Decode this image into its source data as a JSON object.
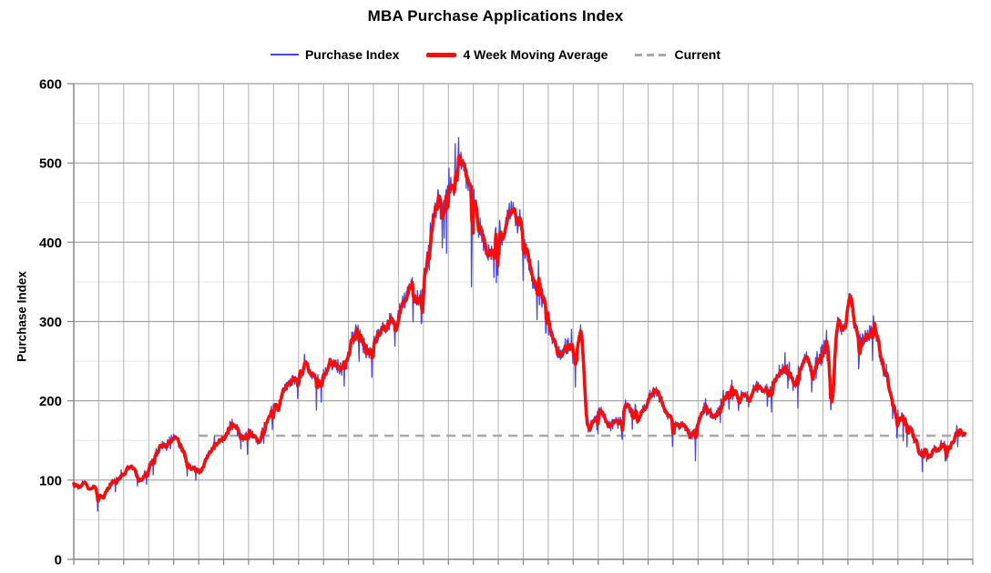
{
  "chart_data": {
    "type": "line",
    "title": "MBA Purchase Applications Index",
    "ylabel": "Purchase Index",
    "x_range": [
      1990,
      2026
    ],
    "ylim": [
      0,
      600
    ],
    "y_major_ticks": [
      0,
      100,
      200,
      300,
      400,
      500,
      600
    ],
    "y_minor_ticks": [
      50,
      150,
      250,
      350,
      450,
      550
    ],
    "x_gridline_interval_years": 1,
    "x_axis_labels_visible": false,
    "grid": true,
    "legend_position": "top-center",
    "legend": [
      {
        "label": "Purchase Index",
        "color": "#4444e4",
        "style": "solid-thin"
      },
      {
        "label": "4 Week Moving Average",
        "color": "#f90d0b",
        "style": "solid-thick"
      },
      {
        "label": "Current",
        "color": "#a9a9a9",
        "style": "dashed"
      }
    ],
    "current_value": 156,
    "current_line_year_span": [
      1995.0,
      2026.0
    ],
    "series_start_year": 1990.0,
    "series_end_year": 2025.7,
    "series": [
      {
        "name": "Purchase Index",
        "description": "weekly index = trend keypoints plus weekly volatility"
      },
      {
        "name": "4 Week Moving Average",
        "description": "4-week moving average of the weekly Purchase Index"
      }
    ],
    "trend_keypoints": [
      [
        1990.0,
        95
      ],
      [
        1990.2,
        90
      ],
      [
        1990.4,
        97
      ],
      [
        1990.6,
        88
      ],
      [
        1990.8,
        93
      ],
      [
        1991.0,
        80
      ],
      [
        1991.15,
        76
      ],
      [
        1991.3,
        88
      ],
      [
        1991.5,
        97
      ],
      [
        1991.7,
        100
      ],
      [
        1991.9,
        104
      ],
      [
        1992.1,
        115
      ],
      [
        1992.3,
        118
      ],
      [
        1992.5,
        106
      ],
      [
        1992.7,
        100
      ],
      [
        1992.9,
        112
      ],
      [
        1993.1,
        122
      ],
      [
        1993.3,
        138
      ],
      [
        1993.5,
        145
      ],
      [
        1993.7,
        142
      ],
      [
        1993.9,
        150
      ],
      [
        1994.1,
        152
      ],
      [
        1994.3,
        140
      ],
      [
        1994.5,
        122
      ],
      [
        1994.7,
        112
      ],
      [
        1994.9,
        118
      ],
      [
        1995.05,
        108
      ],
      [
        1995.2,
        120
      ],
      [
        1995.4,
        133
      ],
      [
        1995.6,
        142
      ],
      [
        1995.8,
        147
      ],
      [
        1996.0,
        153
      ],
      [
        1996.2,
        165
      ],
      [
        1996.4,
        172
      ],
      [
        1996.6,
        160
      ],
      [
        1996.8,
        153
      ],
      [
        1997.0,
        160
      ],
      [
        1997.2,
        155
      ],
      [
        1997.4,
        148
      ],
      [
        1997.6,
        165
      ],
      [
        1997.8,
        178
      ],
      [
        1998.0,
        196
      ],
      [
        1998.15,
        188
      ],
      [
        1998.3,
        205
      ],
      [
        1998.5,
        218
      ],
      [
        1998.7,
        228
      ],
      [
        1998.9,
        225
      ],
      [
        1999.1,
        235
      ],
      [
        1999.3,
        245
      ],
      [
        1999.5,
        235
      ],
      [
        1999.7,
        222
      ],
      [
        1999.9,
        228
      ],
      [
        2000.1,
        238
      ],
      [
        2000.3,
        252
      ],
      [
        2000.5,
        245
      ],
      [
        2000.7,
        240
      ],
      [
        2000.9,
        252
      ],
      [
        2001.1,
        272
      ],
      [
        2001.3,
        288
      ],
      [
        2001.5,
        278
      ],
      [
        2001.7,
        265
      ],
      [
        2001.9,
        262
      ],
      [
        2002.1,
        282
      ],
      [
        2002.3,
        295
      ],
      [
        2002.5,
        290
      ],
      [
        2002.7,
        302
      ],
      [
        2002.9,
        296
      ],
      [
        2003.1,
        312
      ],
      [
        2003.3,
        335
      ],
      [
        2003.5,
        345
      ],
      [
        2003.65,
        330
      ],
      [
        2003.8,
        318
      ],
      [
        2003.95,
        335
      ],
      [
        2004.1,
        370
      ],
      [
        2004.25,
        405
      ],
      [
        2004.4,
        435
      ],
      [
        2004.55,
        450
      ],
      [
        2004.7,
        440
      ],
      [
        2004.85,
        455
      ],
      [
        2005.0,
        460
      ],
      [
        2005.15,
        470
      ],
      [
        2005.3,
        480
      ],
      [
        2005.45,
        495
      ],
      [
        2005.6,
        498
      ],
      [
        2005.75,
        480
      ],
      [
        2005.9,
        470
      ],
      [
        2006.05,
        455
      ],
      [
        2006.2,
        420
      ],
      [
        2006.4,
        400
      ],
      [
        2006.6,
        382
      ],
      [
        2006.8,
        390
      ],
      [
        2007.0,
        420
      ],
      [
        2007.15,
        405
      ],
      [
        2007.3,
        430
      ],
      [
        2007.45,
        440
      ],
      [
        2007.6,
        435
      ],
      [
        2007.8,
        428
      ],
      [
        2007.95,
        415
      ],
      [
        2008.1,
        390
      ],
      [
        2008.25,
        370
      ],
      [
        2008.4,
        355
      ],
      [
        2008.55,
        345
      ],
      [
        2008.7,
        335
      ],
      [
        2008.85,
        322
      ],
      [
        2009.0,
        300
      ],
      [
        2009.15,
        280
      ],
      [
        2009.3,
        268
      ],
      [
        2009.45,
        258
      ],
      [
        2009.6,
        262
      ],
      [
        2009.75,
        272
      ],
      [
        2009.9,
        268
      ],
      [
        2010.05,
        252
      ],
      [
        2010.2,
        275
      ],
      [
        2010.3,
        288
      ],
      [
        2010.4,
        240
      ],
      [
        2010.5,
        175
      ],
      [
        2010.6,
        165
      ],
      [
        2010.75,
        172
      ],
      [
        2010.9,
        180
      ],
      [
        2011.05,
        188
      ],
      [
        2011.2,
        178
      ],
      [
        2011.35,
        172
      ],
      [
        2011.5,
        168
      ],
      [
        2011.65,
        175
      ],
      [
        2011.8,
        170
      ],
      [
        2011.95,
        178
      ],
      [
        2012.1,
        198
      ],
      [
        2012.25,
        190
      ],
      [
        2012.4,
        180
      ],
      [
        2012.55,
        176
      ],
      [
        2012.7,
        184
      ],
      [
        2012.85,
        192
      ],
      [
        2013.0,
        200
      ],
      [
        2013.15,
        210
      ],
      [
        2013.3,
        214
      ],
      [
        2013.45,
        205
      ],
      [
        2013.6,
        192
      ],
      [
        2013.75,
        182
      ],
      [
        2013.9,
        176
      ],
      [
        2014.05,
        172
      ],
      [
        2014.2,
        168
      ],
      [
        2014.35,
        172
      ],
      [
        2014.5,
        166
      ],
      [
        2014.65,
        158
      ],
      [
        2014.8,
        162
      ],
      [
        2014.95,
        168
      ],
      [
        2015.1,
        182
      ],
      [
        2015.25,
        190
      ],
      [
        2015.4,
        186
      ],
      [
        2015.55,
        180
      ],
      [
        2015.7,
        184
      ],
      [
        2015.85,
        188
      ],
      [
        2016.0,
        198
      ],
      [
        2016.15,
        208
      ],
      [
        2016.3,
        213
      ],
      [
        2016.45,
        208
      ],
      [
        2016.6,
        202
      ],
      [
        2016.75,
        208
      ],
      [
        2016.9,
        204
      ],
      [
        2017.05,
        198
      ],
      [
        2017.2,
        212
      ],
      [
        2017.35,
        220
      ],
      [
        2017.5,
        216
      ],
      [
        2017.65,
        210
      ],
      [
        2017.8,
        214
      ],
      [
        2017.95,
        218
      ],
      [
        2018.1,
        228
      ],
      [
        2018.25,
        238
      ],
      [
        2018.4,
        242
      ],
      [
        2018.55,
        235
      ],
      [
        2018.7,
        228
      ],
      [
        2018.85,
        222
      ],
      [
        2019.0,
        232
      ],
      [
        2019.15,
        248
      ],
      [
        2019.3,
        255
      ],
      [
        2019.45,
        242
      ],
      [
        2019.6,
        238
      ],
      [
        2019.75,
        248
      ],
      [
        2019.9,
        258
      ],
      [
        2020.05,
        272
      ],
      [
        2020.15,
        278
      ],
      [
        2020.25,
        228
      ],
      [
        2020.32,
        192
      ],
      [
        2020.4,
        225
      ],
      [
        2020.5,
        280
      ],
      [
        2020.6,
        300
      ],
      [
        2020.7,
        295
      ],
      [
        2020.8,
        288
      ],
      [
        2020.9,
        300
      ],
      [
        2021.0,
        330
      ],
      [
        2021.08,
        338
      ],
      [
        2021.15,
        320
      ],
      [
        2021.25,
        292
      ],
      [
        2021.35,
        282
      ],
      [
        2021.5,
        272
      ],
      [
        2021.65,
        280
      ],
      [
        2021.8,
        288
      ],
      [
        2021.9,
        282
      ],
      [
        2022.0,
        296
      ],
      [
        2022.1,
        290
      ],
      [
        2022.2,
        272
      ],
      [
        2022.35,
        252
      ],
      [
        2022.5,
        228
      ],
      [
        2022.65,
        212
      ],
      [
        2022.8,
        198
      ],
      [
        2022.9,
        186
      ],
      [
        2023.0,
        172
      ],
      [
        2023.1,
        178
      ],
      [
        2023.2,
        182
      ],
      [
        2023.3,
        172
      ],
      [
        2023.45,
        166
      ],
      [
        2023.6,
        158
      ],
      [
        2023.75,
        146
      ],
      [
        2023.85,
        132
      ],
      [
        2023.95,
        136
      ],
      [
        2024.05,
        142
      ],
      [
        2024.15,
        134
      ],
      [
        2024.25,
        130
      ],
      [
        2024.35,
        138
      ],
      [
        2024.45,
        143
      ],
      [
        2024.55,
        135
      ],
      [
        2024.65,
        139
      ],
      [
        2024.75,
        146
      ],
      [
        2024.85,
        137
      ],
      [
        2024.95,
        134
      ],
      [
        2025.05,
        140
      ],
      [
        2025.15,
        148
      ],
      [
        2025.25,
        152
      ],
      [
        2025.35,
        156
      ],
      [
        2025.45,
        162
      ],
      [
        2025.55,
        158
      ],
      [
        2025.7,
        160
      ]
    ],
    "weekly_noise": {
      "seed": 1234,
      "relative_sigma": 0.06,
      "min_sigma_abs": 3,
      "spike_probability": 0.05,
      "spike_down_bias": 0.62,
      "holiday_dip_probability": 0.18
    }
  },
  "colors": {
    "background": "#ffffff",
    "text": "#000000",
    "grid_vertical": "#b3b3b3",
    "grid_major_h": "#9e9e9e",
    "grid_minor_h": "#e7e7e7",
    "axis": "#808080"
  }
}
